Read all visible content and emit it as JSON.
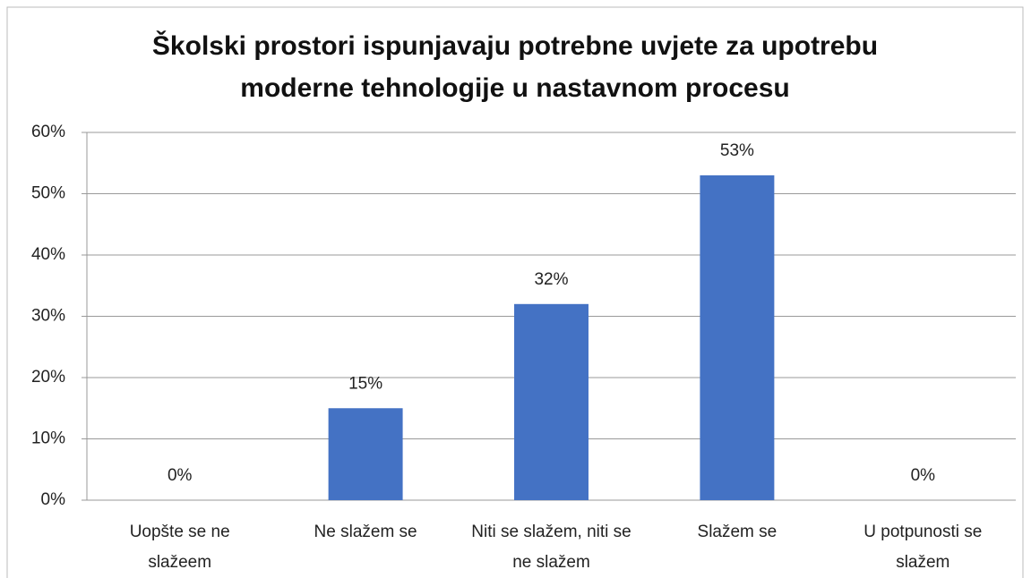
{
  "chart_data": {
    "type": "bar",
    "title": "Školski prostori ispunjavaju potrebne uvjete za upotrebu moderne tehnologije u nastavnom procesu",
    "categories": [
      "Uopšte se ne slažeem",
      "Ne slažem se",
      "Niti se slažem, niti se ne slažem",
      "Slažem se",
      "U potpunosti se slažem"
    ],
    "values": [
      0,
      15,
      32,
      53,
      0
    ],
    "value_labels": [
      "0%",
      "15%",
      "32%",
      "53%",
      "0%"
    ],
    "color": "#4472c4",
    "ylim": [
      0,
      60
    ],
    "yticks": [
      {
        "value": 0,
        "label": "0%"
      },
      {
        "value": 10,
        "label": "10%"
      },
      {
        "value": 20,
        "label": "20%"
      },
      {
        "value": 30,
        "label": "30%"
      },
      {
        "value": 40,
        "label": "40%"
      },
      {
        "value": 50,
        "label": "50%"
      },
      {
        "value": 60,
        "label": "60%"
      }
    ],
    "grid": true
  }
}
